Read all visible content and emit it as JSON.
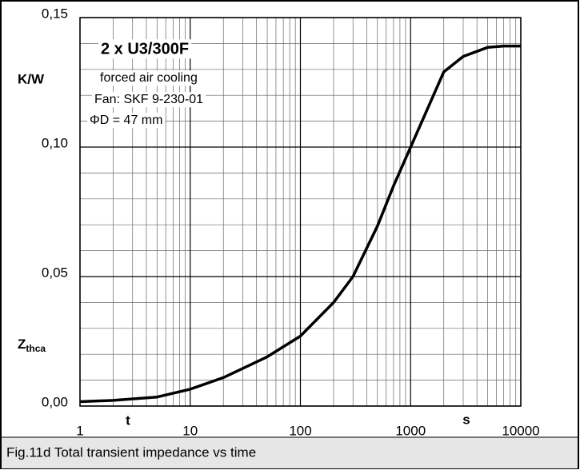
{
  "chart_data": {
    "type": "line",
    "caption": "Fig.11d Total transient impedance vs time",
    "ylabel": "K/W",
    "zlabel": {
      "main": "Z",
      "sub": "thca"
    },
    "xlabel": "t",
    "xunit": "s",
    "annotations": [
      "2 x U3/300F",
      "forced air cooling",
      "Fan: SKF 9-230-01",
      "ΦD = 47 mm"
    ],
    "x": [
      1,
      2,
      5,
      10,
      20,
      50,
      100,
      200,
      300,
      500,
      700,
      1000,
      2000,
      3000,
      5000,
      7000,
      10000
    ],
    "series": [
      {
        "name": "Zthca",
        "color": "#000000",
        "values": [
          0.0017,
          0.0022,
          0.0035,
          0.0065,
          0.011,
          0.019,
          0.027,
          0.04,
          0.05,
          0.0695,
          0.085,
          0.1,
          0.129,
          0.135,
          0.1385,
          0.139,
          0.139
        ]
      }
    ],
    "xlog": true,
    "xlim": [
      1,
      10000
    ],
    "xticks": [
      1,
      10,
      100,
      1000,
      10000
    ],
    "xminor": [
      2,
      3,
      4,
      5,
      6,
      7,
      8,
      9,
      20,
      30,
      40,
      50,
      60,
      70,
      80,
      90,
      200,
      300,
      400,
      500,
      600,
      700,
      800,
      900,
      2000,
      3000,
      4000,
      5000,
      6000,
      7000,
      8000,
      9000
    ],
    "ylim": [
      0,
      0.15
    ],
    "yticks": [
      {
        "value": 0,
        "label": "0,00"
      },
      {
        "value": 0.05,
        "label": "0,05"
      },
      {
        "value": 0.1,
        "label": "0,10"
      },
      {
        "value": 0.15,
        "label": "0,15"
      }
    ],
    "yminor": [
      0.01,
      0.02,
      0.03,
      0.04,
      0.06,
      0.07,
      0.08,
      0.09,
      0.11,
      0.12,
      0.13,
      0.14
    ],
    "grid": true
  }
}
